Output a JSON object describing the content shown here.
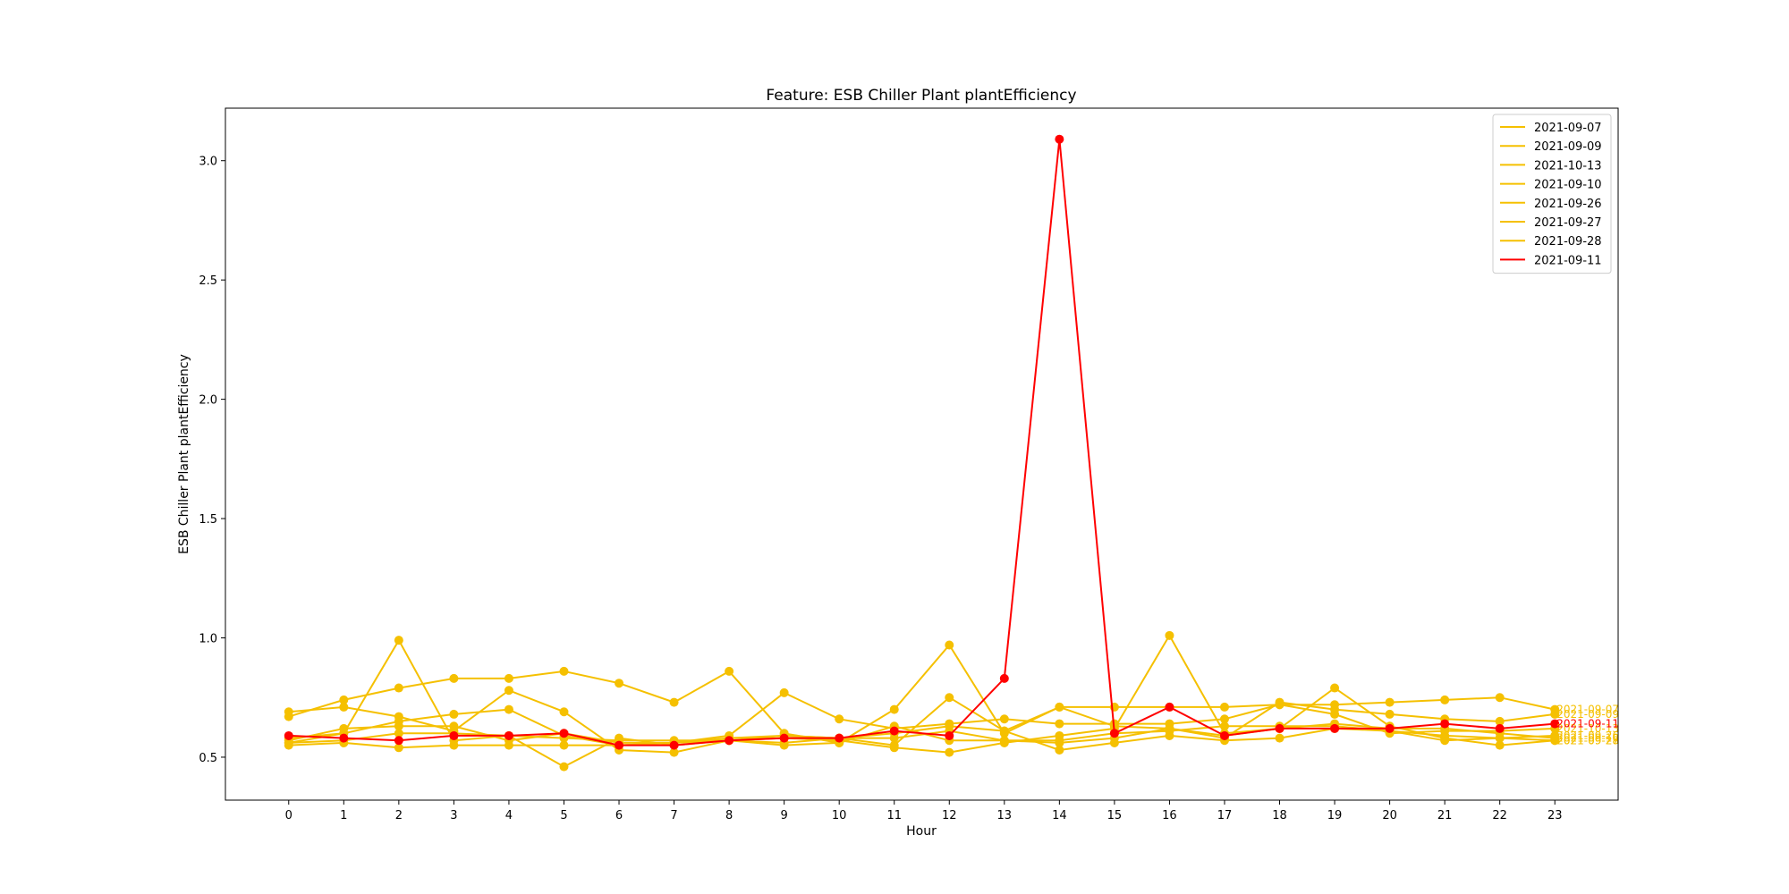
{
  "chart_data": {
    "type": "line",
    "title": "Feature: ESB Chiller Plant plantEfficiency",
    "xlabel": "Hour",
    "ylabel": "ESB Chiller Plant plantEfficiency",
    "x": [
      0,
      1,
      2,
      3,
      4,
      5,
      6,
      7,
      8,
      9,
      10,
      11,
      12,
      13,
      14,
      15,
      16,
      17,
      18,
      19,
      20,
      21,
      22,
      23
    ],
    "xticks": [
      "0",
      "1",
      "2",
      "3",
      "4",
      "5",
      "6",
      "7",
      "8",
      "9",
      "10",
      "11",
      "12",
      "13",
      "14",
      "15",
      "16",
      "17",
      "18",
      "19",
      "20",
      "21",
      "22",
      "23"
    ],
    "xlim": [
      -1.15,
      24.15
    ],
    "ylim": [
      0.32,
      3.22
    ],
    "yticks": [
      0.5,
      1.0,
      1.5,
      2.0,
      2.5,
      3.0
    ],
    "ytick_labels": [
      "0.5",
      "1.0",
      "1.5",
      "2.0",
      "2.5",
      "3.0"
    ],
    "legend_position": "top-right",
    "grid": false,
    "colors": {
      "normal": "#f5c000",
      "highlight": "#ff0000"
    },
    "series": [
      {
        "name": "2021-09-07",
        "color": "#f5c000",
        "end_label": "2021-09-07",
        "values": [
          0.67,
          0.74,
          0.79,
          0.83,
          0.83,
          0.86,
          0.81,
          0.73,
          0.86,
          0.6,
          0.56,
          0.7,
          0.97,
          0.6,
          0.71,
          0.71,
          0.71,
          0.71,
          0.72,
          0.72,
          0.73,
          0.74,
          0.75,
          0.7
        ]
      },
      {
        "name": "2021-09-09",
        "color": "#f5c000",
        "end_label": "2021-09-09",
        "values": [
          0.69,
          0.71,
          0.67,
          0.61,
          0.78,
          0.69,
          0.53,
          0.52,
          0.57,
          0.59,
          0.58,
          0.55,
          0.75,
          0.61,
          0.71,
          0.63,
          0.62,
          0.58,
          0.73,
          0.7,
          0.68,
          0.66,
          0.65,
          0.68
        ]
      },
      {
        "name": "2021-10-13",
        "color": "#f5c000",
        "end_label": "2021-10-13",
        "values": [
          0.58,
          0.6,
          0.65,
          0.68,
          0.7,
          0.59,
          0.55,
          0.56,
          0.59,
          0.77,
          0.66,
          0.62,
          0.64,
          0.66,
          0.64,
          0.64,
          0.64,
          0.66,
          0.72,
          0.68,
          0.6,
          0.61,
          0.61,
          0.62
        ]
      },
      {
        "name": "2021-09-10",
        "color": "#f5c000",
        "end_label": "2021-09-10",
        "values": [
          0.55,
          0.56,
          0.54,
          0.55,
          0.55,
          0.55,
          0.55,
          0.56,
          0.58,
          0.59,
          0.58,
          0.58,
          0.61,
          0.57,
          0.56,
          0.58,
          0.62,
          0.59,
          0.62,
          0.64,
          0.62,
          0.62,
          0.6,
          0.58
        ]
      },
      {
        "name": "2021-09-26",
        "color": "#f5c000",
        "end_label": "2021-09-26",
        "values": [
          0.56,
          0.6,
          0.99,
          0.57,
          0.59,
          0.46,
          0.58,
          0.55,
          0.57,
          0.56,
          0.58,
          0.6,
          0.63,
          0.61,
          0.53,
          0.56,
          0.59,
          0.57,
          0.58,
          0.62,
          0.61,
          0.59,
          0.58,
          0.59
        ]
      },
      {
        "name": "2021-09-27",
        "color": "#f5c000",
        "end_label": "2021-09-27",
        "values": [
          0.57,
          0.62,
          0.63,
          0.63,
          0.57,
          0.6,
          0.56,
          0.56,
          0.57,
          0.58,
          0.57,
          0.54,
          0.52,
          0.56,
          0.59,
          0.62,
          1.01,
          0.6,
          0.62,
          0.79,
          0.63,
          0.58,
          0.55,
          0.57
        ]
      },
      {
        "name": "2021-09-28",
        "color": "#f5c000",
        "end_label": "2021-09-28",
        "values": [
          0.56,
          0.57,
          0.6,
          0.6,
          0.59,
          0.58,
          0.57,
          0.57,
          0.57,
          0.55,
          0.56,
          0.63,
          0.57,
          0.57,
          0.57,
          0.6,
          0.61,
          0.63,
          0.63,
          0.63,
          0.61,
          0.57,
          0.58,
          0.57
        ]
      },
      {
        "name": "2021-09-11",
        "color": "#ff0000",
        "end_label": "2021-09-11",
        "values": [
          0.59,
          0.58,
          0.57,
          0.59,
          0.59,
          0.6,
          0.55,
          0.55,
          0.57,
          0.58,
          0.58,
          0.61,
          0.59,
          0.83,
          3.09,
          0.6,
          0.71,
          0.59,
          0.62,
          0.62,
          0.62,
          0.64,
          0.62,
          0.64
        ]
      }
    ]
  }
}
